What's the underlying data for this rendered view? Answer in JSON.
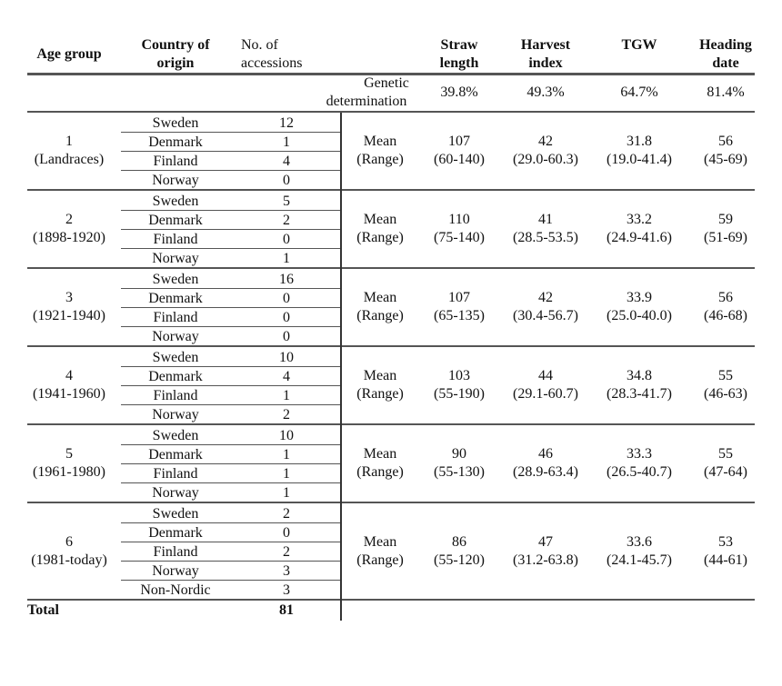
{
  "header": {
    "age_group": "Age group",
    "country_line1": "Country of",
    "country_line2": "origin",
    "accessions_line1": "No. of",
    "accessions_line2": "accessions",
    "traits": [
      {
        "line1": "Straw",
        "line2": "length"
      },
      {
        "line1": "Harvest",
        "line2": "index"
      },
      {
        "line1": "TGW",
        "line2": ""
      },
      {
        "line1": "Heading",
        "line2": "date"
      }
    ]
  },
  "genetic": {
    "label_line1": "Genetic",
    "label_line2": "determination",
    "values": [
      "39.8%",
      "49.3%",
      "64.7%",
      "81.4%"
    ]
  },
  "stat_labels": {
    "mean": "Mean",
    "range": "(Range)"
  },
  "groups": [
    {
      "number": "1",
      "period": "(Landraces)",
      "rows": [
        [
          "Sweden",
          "12"
        ],
        [
          "Denmark",
          "1"
        ],
        [
          "Finland",
          "4"
        ],
        [
          "Norway",
          "0"
        ]
      ],
      "means": [
        "107",
        "42",
        "31.8",
        "56"
      ],
      "ranges": [
        "(60-140)",
        "(29.0-60.3)",
        "(19.0-41.4)",
        "(45-69)"
      ]
    },
    {
      "number": "2",
      "period": "(1898-1920)",
      "rows": [
        [
          "Sweden",
          "5"
        ],
        [
          "Denmark",
          "2"
        ],
        [
          "Finland",
          "0"
        ],
        [
          "Norway",
          "1"
        ]
      ],
      "means": [
        "110",
        "41",
        "33.2",
        "59"
      ],
      "ranges": [
        "(75-140)",
        "(28.5-53.5)",
        "(24.9-41.6)",
        "(51-69)"
      ]
    },
    {
      "number": "3",
      "period": "(1921-1940)",
      "rows": [
        [
          "Sweden",
          "16"
        ],
        [
          "Denmark",
          "0"
        ],
        [
          "Finland",
          "0"
        ],
        [
          "Norway",
          "0"
        ]
      ],
      "means": [
        "107",
        "42",
        "33.9",
        "56"
      ],
      "ranges": [
        "(65-135)",
        "(30.4-56.7)",
        "(25.0-40.0)",
        "(46-68)"
      ]
    },
    {
      "number": "4",
      "period": "(1941-1960)",
      "rows": [
        [
          "Sweden",
          "10"
        ],
        [
          "Denmark",
          "4"
        ],
        [
          "Finland",
          "1"
        ],
        [
          "Norway",
          "2"
        ]
      ],
      "means": [
        "103",
        "44",
        "34.8",
        "55"
      ],
      "ranges": [
        "(55-190)",
        "(29.1-60.7)",
        "(28.3-41.7)",
        "(46-63)"
      ]
    },
    {
      "number": "5",
      "period": "(1961-1980)",
      "rows": [
        [
          "Sweden",
          "10"
        ],
        [
          "Denmark",
          "1"
        ],
        [
          "Finland",
          "1"
        ],
        [
          "Norway",
          "1"
        ]
      ],
      "means": [
        "90",
        "46",
        "33.3",
        "55"
      ],
      "ranges": [
        "(55-130)",
        "(28.9-63.4)",
        "(26.5-40.7)",
        "(47-64)"
      ]
    },
    {
      "number": "6",
      "period": "(1981-today)",
      "rows": [
        [
          "Sweden",
          "2"
        ],
        [
          "Denmark",
          "0"
        ],
        [
          "Finland",
          "2"
        ],
        [
          "Norway",
          "3"
        ],
        [
          "Non-Nordic",
          "3"
        ]
      ],
      "means": [
        "86",
        "47",
        "33.6",
        "53"
      ],
      "ranges": [
        "(55-120)",
        "(31.2-63.8)",
        "(24.1-45.7)",
        "(44-61)"
      ]
    }
  ],
  "total": {
    "label": "Total",
    "value": "81"
  }
}
